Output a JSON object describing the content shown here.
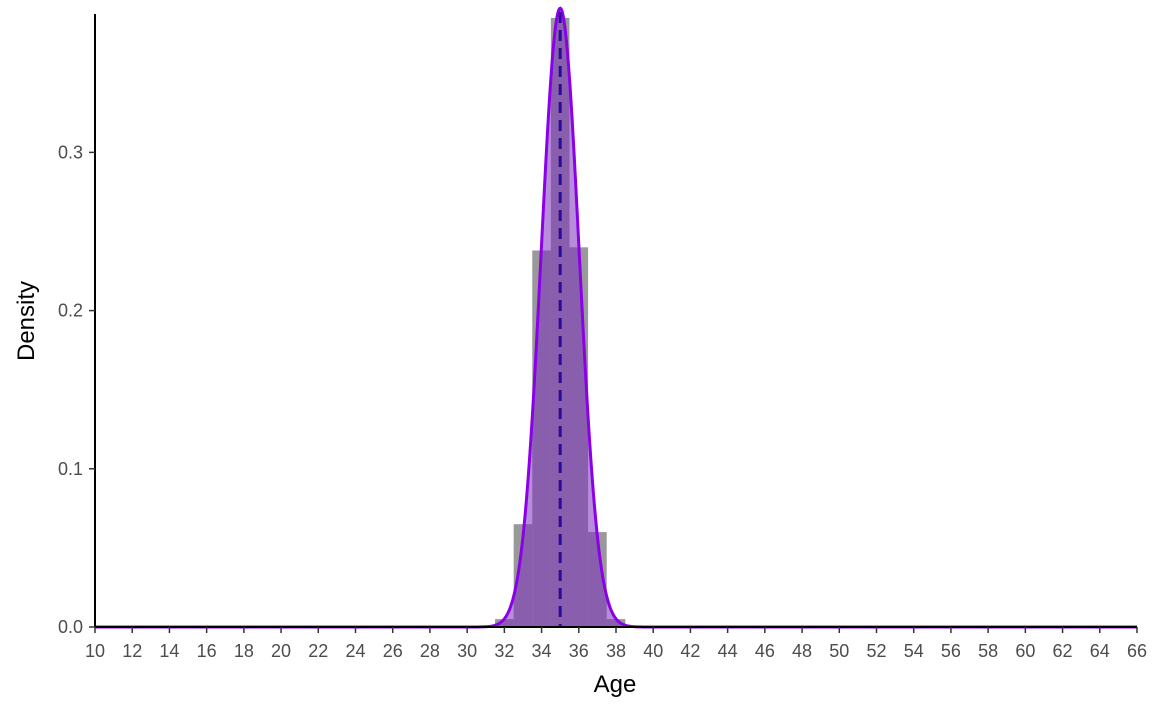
{
  "chart_data": {
    "type": "histogram",
    "xlabel": "Age",
    "ylabel": "Density",
    "xlim": [
      10,
      66
    ],
    "ylim": [
      0,
      0.39
    ],
    "x_ticks": [
      10,
      12,
      14,
      16,
      18,
      20,
      22,
      24,
      26,
      28,
      30,
      32,
      34,
      36,
      38,
      40,
      42,
      44,
      46,
      48,
      50,
      52,
      54,
      56,
      58,
      60,
      62,
      64,
      66
    ],
    "y_ticks": [
      0.0,
      0.1,
      0.2,
      0.3
    ],
    "y_tick_labels": [
      "0.0",
      "0.1",
      "0.2",
      "0.3"
    ],
    "grid": false,
    "bins": [
      {
        "x0": 31.5,
        "x1": 32.5,
        "density": 0.005
      },
      {
        "x0": 32.5,
        "x1": 33.5,
        "density": 0.065
      },
      {
        "x0": 33.5,
        "x1": 34.5,
        "density": 0.238
      },
      {
        "x0": 34.5,
        "x1": 35.5,
        "density": 0.385
      },
      {
        "x0": 35.5,
        "x1": 36.5,
        "density": 0.24
      },
      {
        "x0": 36.5,
        "x1": 37.5,
        "density": 0.06
      },
      {
        "x0": 37.5,
        "x1": 38.5,
        "density": 0.005
      }
    ],
    "density_curve": {
      "mean": 35.0,
      "sd": 1.02,
      "x_range": [
        10,
        66
      ]
    },
    "mean_line": {
      "x": 35.0,
      "style": "dashed"
    },
    "colors": {
      "bars": "#999999",
      "density_fill": "#7b2fbe",
      "density_line": "#8b00e8",
      "mean_line": "#2a0a99",
      "axis": "#000000"
    }
  }
}
